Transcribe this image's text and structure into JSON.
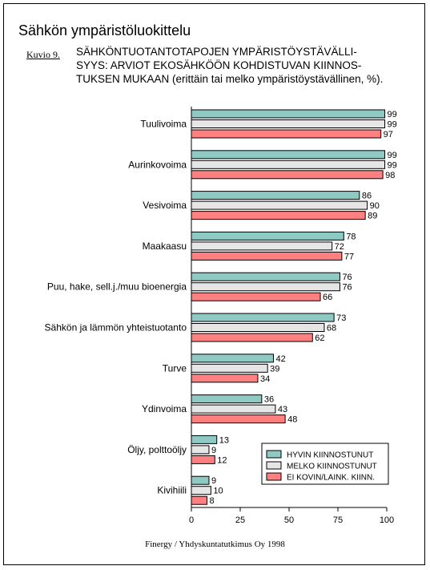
{
  "chart_data": {
    "type": "bar",
    "orientation": "horizontal",
    "title": "Sähkön ympäristöluokittelu",
    "figure_label": "Kuvio 9.",
    "subtitle_lines": [
      "SÄHKÖNTUOTANTOTAPOJEN YMPÄRISTÖYSTÄVÄLLI-",
      "SYYS: ARVIOT EKOSÄHKÖÖN KOHDISTUVAN KIINNOS-",
      "TUKSEN MUKAAN (erittäin tai melko ympäristöystävällinen, %)."
    ],
    "categories": [
      "Tuulivoima",
      "Aurinkovoima",
      "Vesivoima",
      "Maakaasu",
      "Puu, hake, sell.j./muu bioenergia",
      "Sähkön ja lämmön yhteistuotanto",
      "Turve",
      "Ydinvoima",
      "Öljy, polttoöljy",
      "Kivihiili"
    ],
    "series": [
      {
        "name": "HYVIN KIINNOSTUNUT",
        "color": "#8ec9c4",
        "values": [
          99,
          99,
          86,
          78,
          76,
          73,
          42,
          36,
          13,
          9
        ]
      },
      {
        "name": "MELKO KIINNOSTUNUT",
        "color": "#e6e6e6",
        "values": [
          99,
          99,
          90,
          72,
          76,
          68,
          39,
          43,
          9,
          10
        ]
      },
      {
        "name": "EI KOVIN/LAINK. KIINN.",
        "color": "#ff8080",
        "values": [
          97,
          98,
          89,
          77,
          66,
          62,
          34,
          48,
          12,
          8
        ]
      }
    ],
    "xlim": [
      0,
      100
    ],
    "xticks": [
      0,
      25,
      50,
      75,
      100
    ],
    "legend_position": "bottom-right",
    "grid": false,
    "source": "Finergy / Yhdyskuntatutkimus Oy 1998"
  }
}
